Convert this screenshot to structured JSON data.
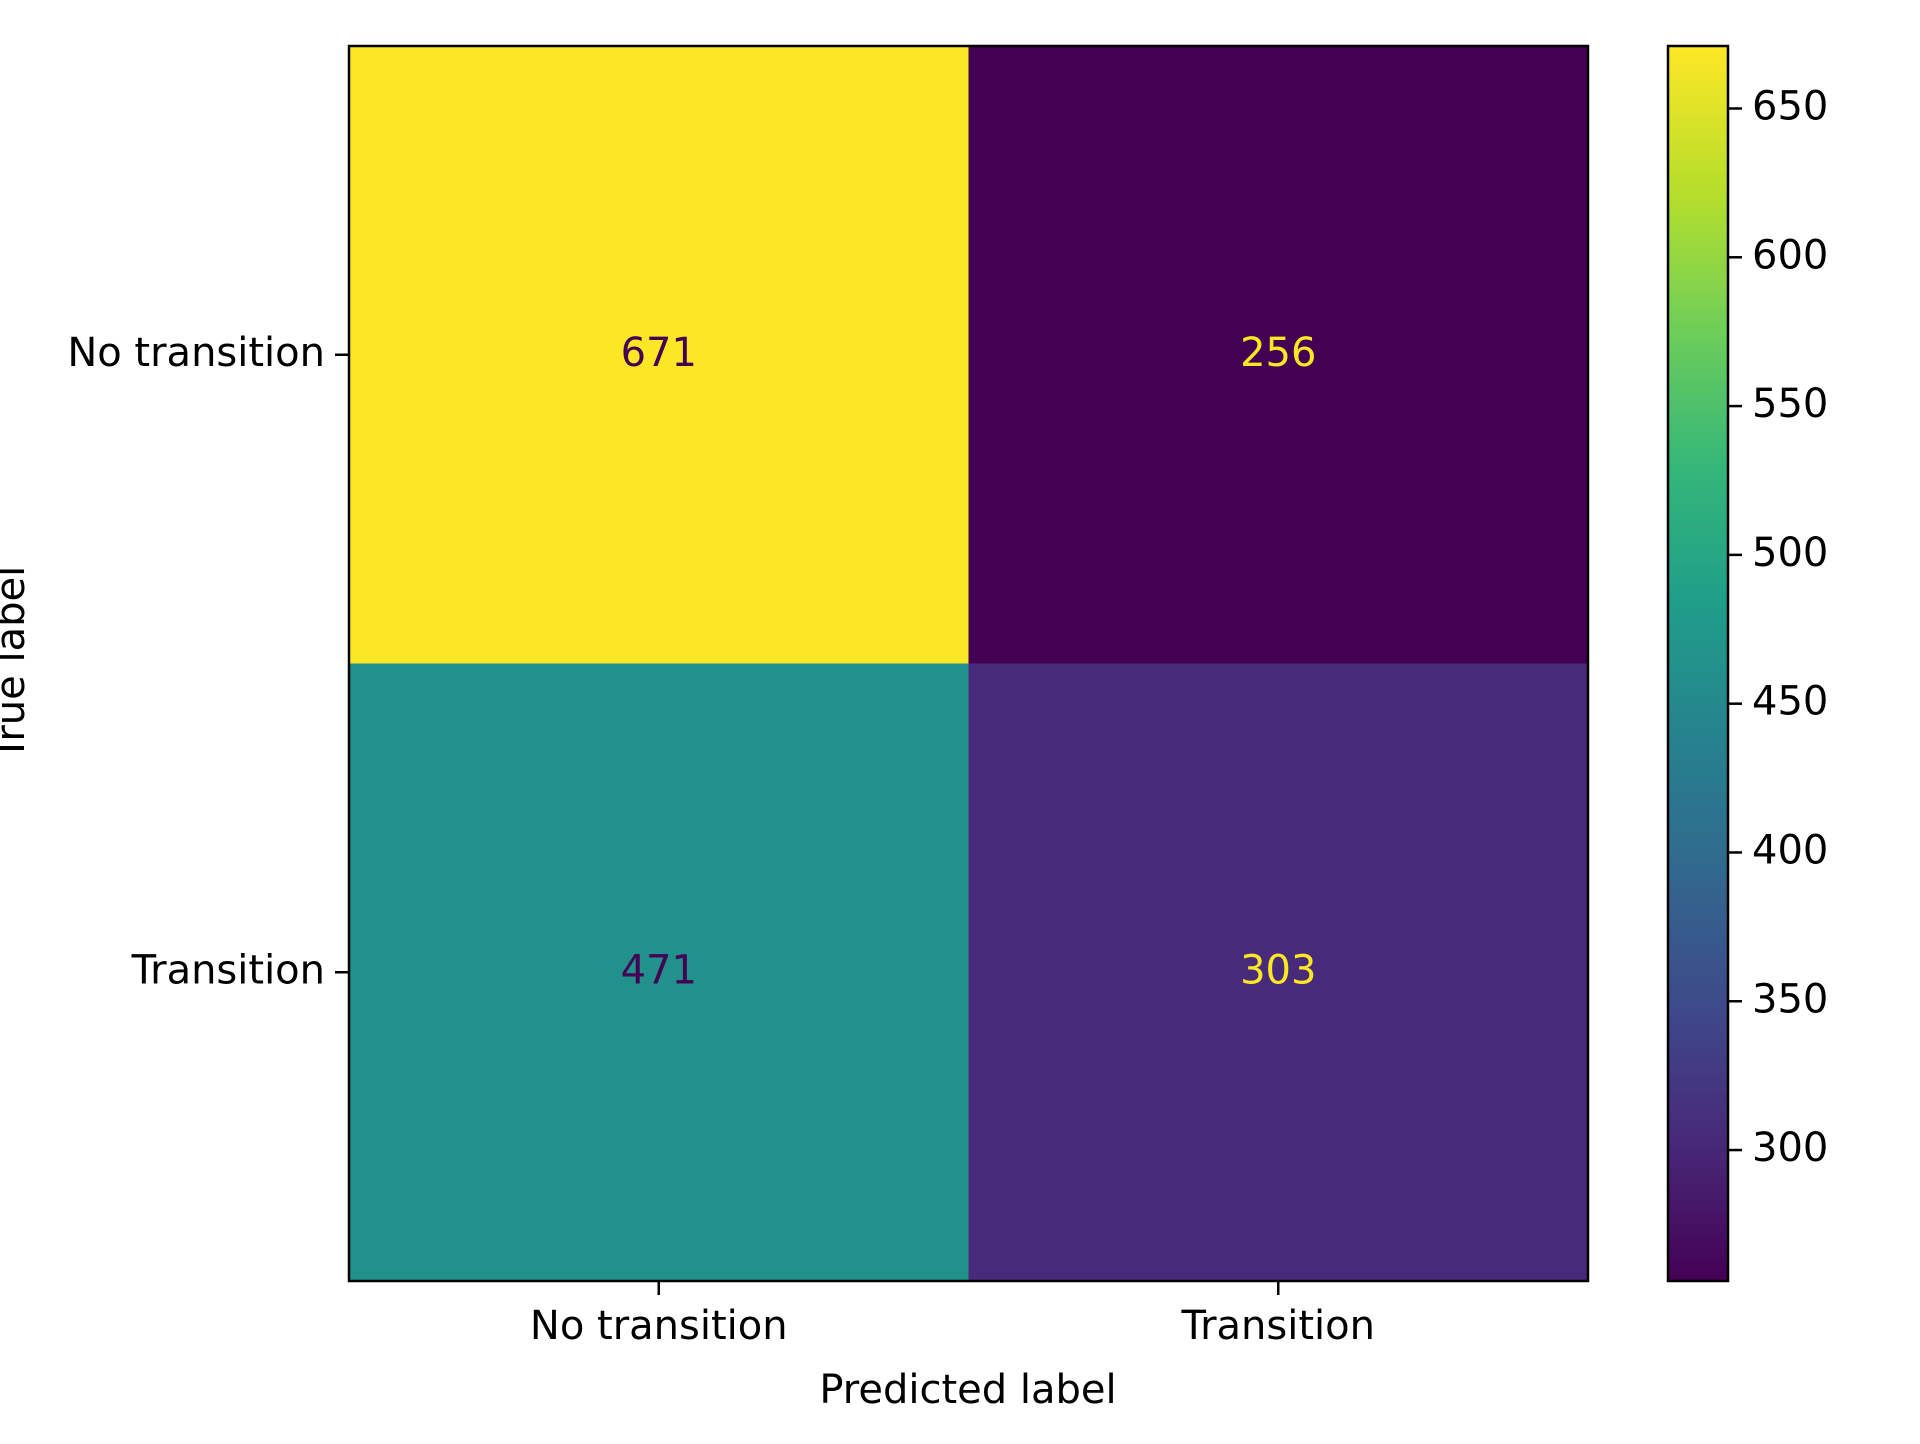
{
  "chart_data": {
    "type": "heatmap",
    "title": "",
    "xlabel": "Predicted label",
    "ylabel": "True label",
    "x_categories": [
      "No transition",
      "Transition"
    ],
    "y_categories": [
      "No transition",
      "Transition"
    ],
    "values": [
      [
        671,
        256
      ],
      [
        471,
        303
      ]
    ],
    "colormap": "viridis",
    "colorbar": {
      "range": [
        256,
        671
      ],
      "ticks": [
        300,
        350,
        400,
        450,
        500,
        550,
        600,
        650
      ],
      "tick_labels": [
        "300",
        "350",
        "400",
        "450",
        "500",
        "550",
        "600",
        "650"
      ]
    },
    "cell_colors": [
      [
        "#fde725",
        "#440154"
      ],
      [
        "#21918c",
        "#472a7a"
      ]
    ],
    "label_colors": {
      "on_light": "#440154",
      "on_dark": "#fde725"
    },
    "grid": false
  }
}
